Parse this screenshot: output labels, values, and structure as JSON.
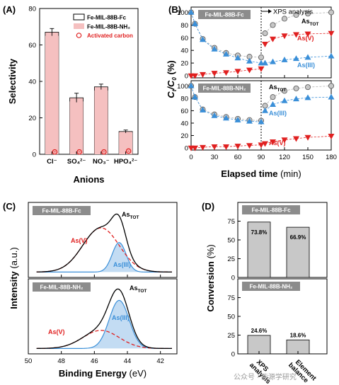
{
  "panel_labels": {
    "a": "(A)",
    "b": "(B)",
    "c": "(C)",
    "d": "(D)"
  },
  "watermark": "公众号 · 能源学研究",
  "colors": {
    "bar_pink": "#f5c0c0",
    "bar_gray": "#c8c8c8",
    "red": "#e02020",
    "blue": "#3a8fd8",
    "gray_marker": "#b0b0b0",
    "fill_blue": "#a9cdee",
    "box_gray": "#8c8c8c"
  },
  "chart_data": [
    {
      "panel": "A",
      "type": "bar",
      "categories": [
        "Cl⁻",
        "SO₄²⁻",
        "NO₃⁻",
        "HPO₄²⁻"
      ],
      "ylabel": "Selectivity",
      "xlabel": "Anions",
      "ylim": [
        0,
        80
      ],
      "yticks": [
        0,
        20,
        40,
        60,
        80
      ],
      "series": [
        {
          "name": "Fe-MIL-88B-Fc",
          "values": [
            67,
            31,
            37,
            12.5
          ],
          "errors": [
            2,
            2.5,
            1.5,
            0.8
          ]
        },
        {
          "name": "Fe-MIL-88B-NH₂",
          "values": [
            65,
            29,
            35,
            12
          ]
        },
        {
          "name": "Activated carbon",
          "values": [
            0.5,
            0.5,
            0.5,
            1
          ]
        }
      ]
    },
    {
      "panel": "B",
      "type": "scatter",
      "xlabel": "Elapsed time",
      "xunit": "(min)",
      "ylabel_main": "C",
      "ylabel_t": "t",
      "ylabel_sep": "/C",
      "ylabel_0": "0",
      "ylabel_unit": " (%)",
      "xlim": [
        0,
        180
      ],
      "xticks": [
        0,
        30,
        60,
        90,
        120,
        150,
        180
      ],
      "yticks": [
        0,
        20,
        40,
        60,
        80,
        100
      ],
      "divider_x": 90,
      "divider_label": "XPS analysis",
      "subplots": [
        {
          "title": "Fe-MIL-88B-Fc",
          "series": [
            {
              "name": "As_TOT",
              "label": "As",
              "sub": "TOT",
              "color": "gray",
              "x": [
                0,
                5,
                15,
                30,
                45,
                60,
                75,
                90,
                95,
                105,
                120,
                135,
                150,
                180
              ],
              "y": [
                100,
                82,
                58,
                44,
                36,
                32,
                30,
                29,
                67,
                80,
                90,
                96,
                98,
                100
              ]
            },
            {
              "name": "As(V)",
              "label": "As(V)",
              "color": "red",
              "x": [
                0,
                5,
                15,
                30,
                45,
                60,
                75,
                90,
                95,
                105,
                120,
                135,
                150,
                180
              ],
              "y": [
                0,
                0,
                2,
                4,
                5,
                7,
                9,
                11,
                50,
                58,
                63,
                65,
                66,
                67
              ]
            },
            {
              "name": "As(III)",
              "label": "As(III)",
              "color": "blue",
              "x": [
                0,
                5,
                15,
                30,
                45,
                60,
                75,
                90,
                95,
                105,
                120,
                135,
                150,
                180
              ],
              "y": [
                100,
                82,
                57,
                42,
                34,
                28,
                23,
                20,
                20,
                22,
                25,
                27,
                29,
                31
              ]
            }
          ]
        },
        {
          "title": "Fe-MIL-88B-NH₂",
          "series": [
            {
              "name": "As_TOT",
              "label": "As",
              "sub": "TOT",
              "color": "gray",
              "x": [
                0,
                5,
                15,
                30,
                45,
                60,
                75,
                90,
                95,
                105,
                120,
                135,
                150,
                180
              ],
              "y": [
                100,
                82,
                62,
                54,
                50,
                47,
                45,
                44,
                68,
                82,
                92,
                96,
                98,
                100
              ]
            },
            {
              "name": "As(V)",
              "label": "As(V)",
              "color": "red",
              "x": [
                0,
                5,
                15,
                30,
                45,
                60,
                75,
                90,
                95,
                105,
                120,
                135,
                150,
                180
              ],
              "y": [
                0,
                0,
                1,
                2,
                2,
                3,
                4,
                5,
                7,
                10,
                13,
                15,
                17,
                19
              ]
            },
            {
              "name": "As(III)",
              "label": "As(III)",
              "color": "blue",
              "x": [
                0,
                5,
                15,
                30,
                45,
                60,
                75,
                90,
                95,
                105,
                120,
                135,
                150,
                180
              ],
              "y": [
                100,
                82,
                61,
                52,
                48,
                45,
                43,
                42,
                60,
                70,
                76,
                79,
                81,
                82
              ]
            }
          ]
        }
      ]
    },
    {
      "panel": "C",
      "type": "line",
      "xlabel": "Binding Energy",
      "xunit": "(eV)",
      "ylabel": "Intensity",
      "yunit": "(a.u.)",
      "xlim": [
        50,
        41
      ],
      "xticks": [
        50,
        48,
        46,
        44,
        42
      ],
      "subplots": [
        {
          "title": "Fe-MIL-88B-Fc",
          "peaks": {
            "v": {
              "center": 45.6,
              "height": 0.78,
              "width": 1.1
            },
            "iii": {
              "center": 44.5,
              "height": 0.52,
              "width": 0.42
            }
          },
          "labels": {
            "tot": "As",
            "tot_sub": "TOT",
            "v": "As(V)",
            "iii": "As(III)"
          }
        },
        {
          "title": "Fe-MIL-88B-NH₂",
          "peaks": {
            "v": {
              "center": 45.6,
              "height": 0.32,
              "width": 1.1
            },
            "iii": {
              "center": 44.5,
              "height": 0.85,
              "width": 0.6
            }
          },
          "labels": {
            "tot": "As",
            "tot_sub": "TOT",
            "v": "As(V)",
            "iii": "As(III)"
          }
        }
      ]
    },
    {
      "panel": "D",
      "type": "bar",
      "categories": [
        "XPS analysis",
        "Element balance"
      ],
      "ylabel": "Conversion",
      "yunit": "(%)",
      "yticks": [
        0,
        25,
        50,
        75
      ],
      "subplots": [
        {
          "title": "Fe-MIL-88B-Fc",
          "values": [
            73.8
          ],
          "labels": [
            "73.8%"
          ],
          "values2": [
            66.9
          ],
          "labels2": [
            "66.9%"
          ]
        },
        {
          "title": "Fe-MIL-88B-NH₂",
          "values": [
            24.6
          ],
          "labels": [
            "24.6%"
          ],
          "values2": [
            18.6
          ],
          "labels2": [
            "18.6%"
          ]
        }
      ]
    }
  ]
}
